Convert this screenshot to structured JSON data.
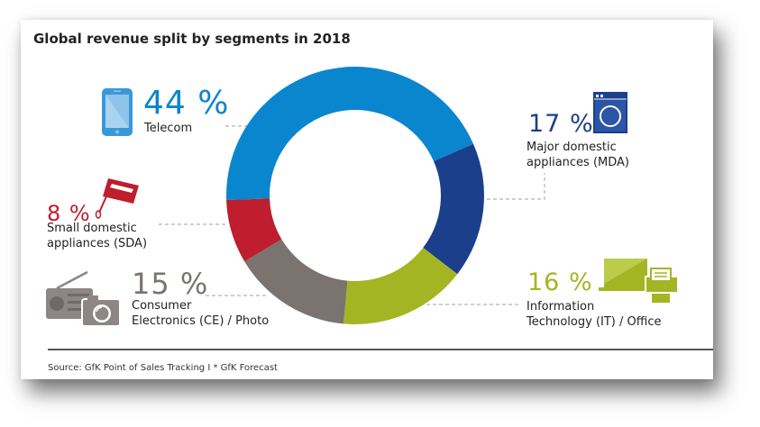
{
  "title": "Global revenue split by segments in 2018",
  "source": "Source: GfK Point of Sales Tracking I * GfK Forecast",
  "colors": {
    "telecom": "#0a86cf",
    "mda": "#1b3f8b",
    "it": "#a4b523",
    "ce": "#7a7370",
    "sda": "#be1e2d",
    "leader": "#b5b5b5"
  },
  "segments": [
    {
      "key": "telecom",
      "pct_label": "44 %",
      "label_lines": [
        "Telecom"
      ],
      "icon": "tablet-icon"
    },
    {
      "key": "mda",
      "pct_label": "17 %",
      "label_lines": [
        "Major domestic",
        "appliances (MDA)"
      ],
      "icon": "washing-machine-icon"
    },
    {
      "key": "it",
      "pct_label": "16 %",
      "label_lines": [
        "Information",
        "Technology (IT) / Office"
      ],
      "icon": "laptop-printer-icon"
    },
    {
      "key": "ce",
      "pct_label": "15 %",
      "label_lines": [
        "Consumer",
        "Electronics (CE) / Photo"
      ],
      "icon": "radio-camera-icon"
    },
    {
      "key": "sda",
      "pct_label": "8 %",
      "label_lines": [
        "Small domestic",
        "appliances (SDA)"
      ],
      "icon": "hand-mixer-icon"
    }
  ],
  "chart_data": {
    "type": "pie",
    "variant": "donut",
    "title": "Global revenue split by segments in 2018",
    "unit": "%",
    "categories": [
      "Telecom",
      "Major domestic appliances (MDA)",
      "Information Technology (IT) / Office",
      "Consumer Electronics (CE) / Photo",
      "Small domestic appliances (SDA)"
    ],
    "values": [
      44,
      17,
      16,
      15,
      8
    ],
    "colors": [
      "#0a86cf",
      "#1b3f8b",
      "#a4b523",
      "#7a7370",
      "#be1e2d"
    ],
    "order": "clockwise starting at 9 o'clock with Telecom",
    "legend": "labels placed around chart",
    "source": "Source: GfK Point of Sales Tracking I * GfK Forecast"
  }
}
